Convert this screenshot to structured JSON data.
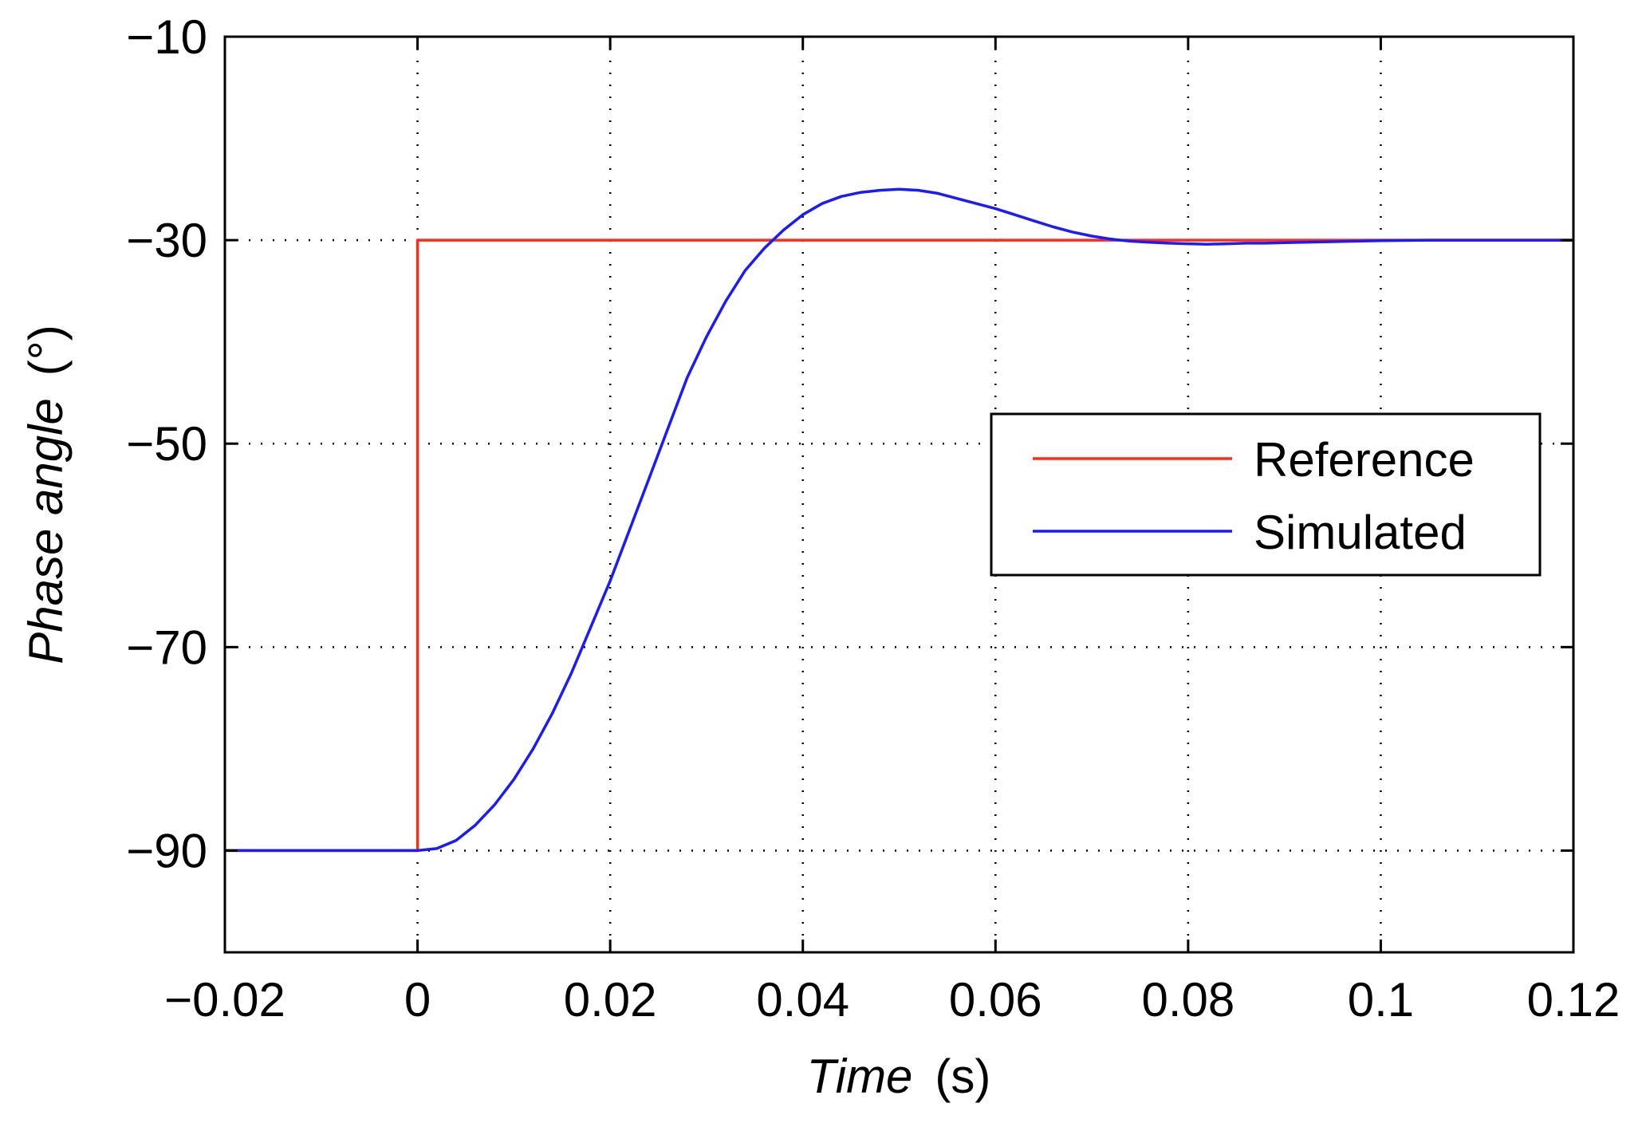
{
  "chart_data": {
    "type": "line",
    "xlabel_italic": "Time",
    "xlabel_unit": "(s)",
    "ylabel_italic": "Phase angle",
    "ylabel_unit": "(°)",
    "xlim": [
      -0.02,
      0.12
    ],
    "ylim": [
      -100,
      -10
    ],
    "xticks": [
      -0.02,
      0,
      0.02,
      0.04,
      0.06,
      0.08,
      0.1,
      0.12
    ],
    "xtick_labels": [
      "−0.02",
      "0",
      "0.02",
      "0.04",
      "0.06",
      "0.08",
      "0.1",
      "0.12"
    ],
    "yticks": [
      -90,
      -70,
      -50,
      -30,
      -10
    ],
    "ytick_labels": [
      "−90",
      "−70",
      "−50",
      "−30",
      "−10"
    ],
    "grid": true,
    "legend_position": "center-right",
    "series": [
      {
        "name": "Reference",
        "color": "#ff2a1a",
        "x": [
          -0.02,
          0,
          0,
          0.12
        ],
        "y": [
          -90,
          -90,
          -30,
          -30
        ]
      },
      {
        "name": "Simulated",
        "color": "#1a1aff",
        "x": [
          -0.02,
          0,
          0.002,
          0.004,
          0.006,
          0.008,
          0.01,
          0.012,
          0.014,
          0.016,
          0.018,
          0.02,
          0.022,
          0.024,
          0.026,
          0.028,
          0.03,
          0.032,
          0.034,
          0.036,
          0.038,
          0.04,
          0.042,
          0.044,
          0.046,
          0.048,
          0.05,
          0.052,
          0.054,
          0.056,
          0.058,
          0.06,
          0.062,
          0.064,
          0.066,
          0.068,
          0.07,
          0.072,
          0.074,
          0.076,
          0.078,
          0.08,
          0.082,
          0.084,
          0.086,
          0.088,
          0.09,
          0.095,
          0.1,
          0.105,
          0.11,
          0.12
        ],
        "y": [
          -90,
          -90,
          -89.8,
          -89,
          -87.5,
          -85.5,
          -83,
          -80,
          -76.5,
          -72.5,
          -68,
          -63.5,
          -58.5,
          -53.5,
          -48.5,
          -43.5,
          -39.5,
          -36,
          -33,
          -30.8,
          -29,
          -27.5,
          -26.4,
          -25.7,
          -25.3,
          -25.1,
          -25,
          -25.1,
          -25.4,
          -25.9,
          -26.4,
          -26.9,
          -27.5,
          -28.1,
          -28.7,
          -29.2,
          -29.6,
          -29.9,
          -30.1,
          -30.2,
          -30.3,
          -30.35,
          -30.4,
          -30.35,
          -30.3,
          -30.3,
          -30.25,
          -30.15,
          -30.05,
          -30,
          -30,
          -30
        ]
      }
    ]
  }
}
